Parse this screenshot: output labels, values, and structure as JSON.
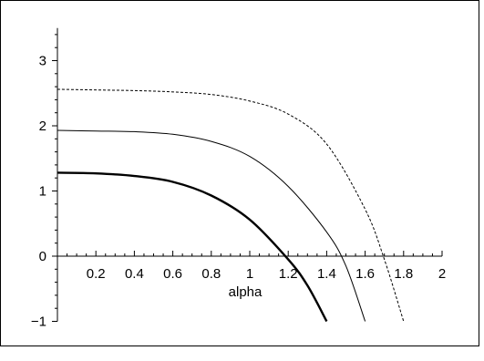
{
  "chart_data": {
    "type": "line",
    "xlabel": "alpha",
    "ylabel": "",
    "xlim": [
      0,
      2
    ],
    "ylim": [
      -1,
      3.5
    ],
    "x_ticks": [
      "0.2",
      "0.4",
      "0.6",
      "0.8",
      "1",
      "1.2",
      "1.4",
      "1.6",
      "1.8",
      "2"
    ],
    "y_ticks": [
      "-1",
      "0",
      "1",
      "2",
      "3"
    ],
    "grid": false,
    "series": [
      {
        "style": "solid-bold",
        "points": [
          [
            0,
            1.28
          ],
          [
            0.2,
            1.27
          ],
          [
            0.4,
            1.23
          ],
          [
            0.6,
            1.14
          ],
          [
            0.8,
            0.93
          ],
          [
            1.0,
            0.56
          ],
          [
            1.2,
            -0.05
          ],
          [
            1.3,
            -0.45
          ],
          [
            1.4,
            -1.0
          ]
        ]
      },
      {
        "style": "solid",
        "points": [
          [
            0,
            1.93
          ],
          [
            0.2,
            1.92
          ],
          [
            0.4,
            1.91
          ],
          [
            0.6,
            1.87
          ],
          [
            0.8,
            1.76
          ],
          [
            1.0,
            1.53
          ],
          [
            1.2,
            1.07
          ],
          [
            1.4,
            0.37
          ],
          [
            1.5,
            -0.15
          ],
          [
            1.6,
            -1.0
          ]
        ]
      },
      {
        "style": "dotted",
        "points": [
          [
            0,
            2.56
          ],
          [
            0.2,
            2.55
          ],
          [
            0.4,
            2.54
          ],
          [
            0.6,
            2.52
          ],
          [
            0.8,
            2.48
          ],
          [
            1.0,
            2.38
          ],
          [
            1.2,
            2.18
          ],
          [
            1.4,
            1.72
          ],
          [
            1.6,
            0.72
          ],
          [
            1.7,
            -0.05
          ],
          [
            1.8,
            -1.0
          ]
        ]
      }
    ]
  }
}
